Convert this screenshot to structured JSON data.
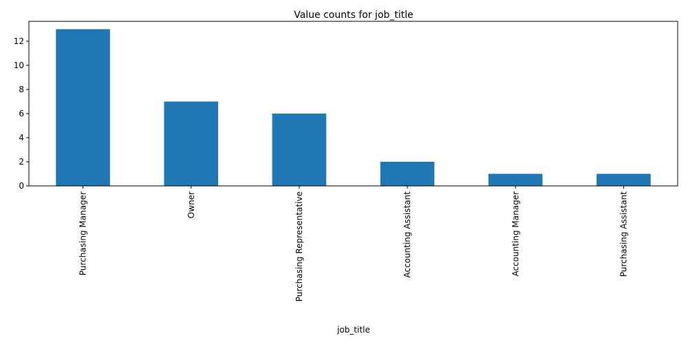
{
  "chart_data": {
    "type": "bar",
    "title": "Value counts for job_title",
    "xlabel": "job_title",
    "ylabel": "",
    "categories": [
      "Purchasing Manager",
      "Owner",
      "Purchasing Representative",
      "Accounting Assistant",
      "Accounting Manager",
      "Purchasing Assistant"
    ],
    "values": [
      13,
      7,
      6,
      2,
      1,
      1
    ],
    "ylim": [
      0,
      13.65
    ],
    "yticks": [
      0,
      2,
      4,
      6,
      8,
      10,
      12
    ],
    "grid": false,
    "legend": "none",
    "bar_color": "#1f77b4"
  }
}
